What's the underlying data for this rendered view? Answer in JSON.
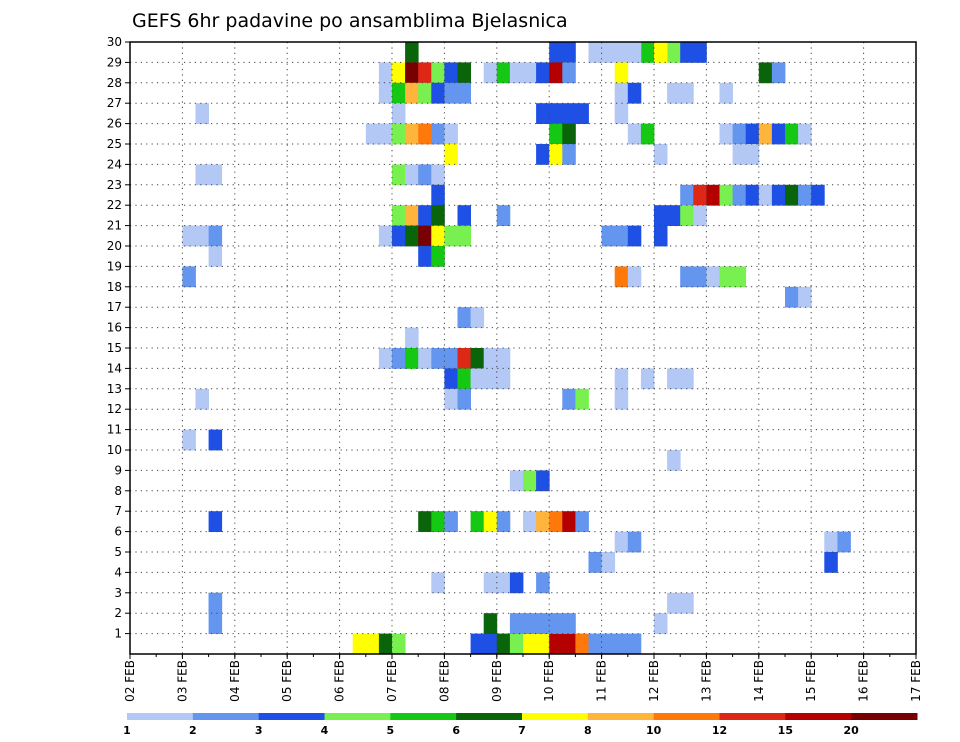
{
  "chart_data": {
    "type": "heatmap",
    "title": "GEFS 6hr padavine po ansamblima Bjelasnica",
    "x_tick_labels": [
      "02 FEB",
      "03 FEB",
      "04 FEB",
      "05 FEB",
      "06 FEB",
      "07 FEB",
      "08 FEB",
      "09 FEB",
      "10 FEB",
      "11 FEB",
      "12 FEB",
      "13 FEB",
      "14 FEB",
      "15 FEB",
      "16 FEB",
      "17 FEB"
    ],
    "x_unit": "6-hour steps from 02 FEB 00Z",
    "xlim": [
      0,
      60
    ],
    "ylim": [
      0,
      30
    ],
    "y_tick_labels": [
      "1",
      "2",
      "3",
      "4",
      "5",
      "6",
      "7",
      "8",
      "9",
      "10",
      "11",
      "12",
      "13",
      "14",
      "15",
      "16",
      "17",
      "18",
      "19",
      "20",
      "21",
      "22",
      "23",
      "24",
      "25",
      "26",
      "27",
      "28",
      "29",
      "30"
    ],
    "legend": {
      "labels": [
        "1",
        "2",
        "3",
        "4",
        "5",
        "6",
        "7",
        "8",
        "10",
        "12",
        "15",
        "20"
      ],
      "colors": [
        "#b4c8f5",
        "#6496f0",
        "#1e50e6",
        "#78f050",
        "#14c814",
        "#0a640a",
        "#ffff00",
        "#ffb43c",
        "#ff780a",
        "#dc2814",
        "#b40000",
        "#780000"
      ]
    },
    "grid": true,
    "cells": [
      [
        17,
        0,
        6
      ],
      [
        18,
        0,
        6
      ],
      [
        19,
        0,
        5
      ],
      [
        20,
        0,
        3
      ],
      [
        26,
        0,
        2
      ],
      [
        27,
        0,
        2
      ],
      [
        28,
        0,
        5
      ],
      [
        29,
        0,
        3
      ],
      [
        30,
        0,
        6
      ],
      [
        31,
        0,
        6
      ],
      [
        32,
        0,
        10
      ],
      [
        33,
        0,
        10
      ],
      [
        34,
        0,
        8
      ],
      [
        35,
        0,
        1
      ],
      [
        36,
        0,
        1
      ],
      [
        37,
        0,
        1
      ],
      [
        38,
        0,
        1
      ],
      [
        33,
        1,
        1
      ],
      [
        32,
        1,
        1
      ],
      [
        31,
        1,
        1
      ],
      [
        30,
        1,
        1
      ],
      [
        29,
        1,
        1
      ],
      [
        6,
        1,
        1
      ],
      [
        6,
        2,
        1
      ],
      [
        6,
        2,
        1
      ],
      [
        33,
        29,
        2
      ],
      [
        39,
        29,
        4
      ],
      [
        41,
        29,
        3
      ],
      [
        40,
        29,
        6
      ],
      [
        21,
        29,
        5
      ],
      [
        32,
        29,
        2
      ],
      [
        35,
        29,
        0
      ],
      [
        36,
        29,
        0
      ],
      [
        37,
        29,
        0
      ],
      [
        38,
        29,
        0
      ],
      [
        42,
        29,
        2
      ],
      [
        43,
        29,
        2
      ],
      [
        19,
        28,
        0
      ],
      [
        20,
        28,
        6
      ],
      [
        21,
        28,
        11
      ],
      [
        22,
        28,
        9
      ],
      [
        23,
        28,
        3
      ],
      [
        24,
        28,
        2
      ],
      [
        25,
        28,
        5
      ],
      [
        27,
        28,
        0
      ],
      [
        28,
        28,
        4
      ],
      [
        29,
        28,
        0
      ],
      [
        30,
        28,
        0
      ],
      [
        31,
        28,
        2
      ],
      [
        32,
        28,
        10
      ],
      [
        33,
        28,
        1
      ],
      [
        37,
        28,
        6
      ],
      [
        48,
        28,
        5
      ],
      [
        49,
        28,
        1
      ],
      [
        19,
        27,
        0
      ],
      [
        20,
        27,
        4
      ],
      [
        21,
        27,
        7
      ],
      [
        22,
        27,
        3
      ],
      [
        23,
        27,
        2
      ],
      [
        24,
        27,
        1
      ],
      [
        25,
        27,
        1
      ],
      [
        37,
        27,
        0
      ],
      [
        38,
        27,
        2
      ],
      [
        41,
        27,
        0
      ],
      [
        42,
        27,
        0
      ],
      [
        45,
        27,
        0
      ],
      [
        5,
        26,
        0
      ],
      [
        20,
        26,
        0
      ],
      [
        31,
        26,
        2
      ],
      [
        32,
        26,
        2
      ],
      [
        33,
        26,
        2
      ],
      [
        34,
        26,
        2
      ],
      [
        37,
        26,
        0
      ],
      [
        18,
        25,
        0
      ],
      [
        19,
        25,
        0
      ],
      [
        20,
        25,
        3
      ],
      [
        21,
        25,
        7
      ],
      [
        22,
        25,
        8
      ],
      [
        23,
        25,
        1
      ],
      [
        24,
        25,
        0
      ],
      [
        32,
        25,
        4
      ],
      [
        33,
        25,
        5
      ],
      [
        38,
        25,
        0
      ],
      [
        39,
        25,
        4
      ],
      [
        45,
        25,
        0
      ],
      [
        46,
        25,
        1
      ],
      [
        47,
        25,
        2
      ],
      [
        48,
        25,
        7
      ],
      [
        49,
        25,
        2
      ],
      [
        50,
        25,
        4
      ],
      [
        51,
        25,
        0
      ],
      [
        24,
        24,
        6
      ],
      [
        31,
        24,
        2
      ],
      [
        32,
        24,
        6
      ],
      [
        33,
        24,
        1
      ],
      [
        40,
        24,
        0
      ],
      [
        46,
        24,
        0
      ],
      [
        47,
        24,
        0
      ],
      [
        5,
        23,
        0
      ],
      [
        6,
        23,
        0
      ],
      [
        20,
        23,
        3
      ],
      [
        21,
        23,
        0
      ],
      [
        22,
        23,
        1
      ],
      [
        23,
        23,
        0
      ],
      [
        23,
        22,
        2
      ],
      [
        42,
        22,
        1
      ],
      [
        43,
        22,
        9
      ],
      [
        44,
        22,
        10
      ],
      [
        45,
        22,
        3
      ],
      [
        46,
        22,
        1
      ],
      [
        47,
        22,
        2
      ],
      [
        48,
        22,
        0
      ],
      [
        49,
        22,
        2
      ],
      [
        50,
        22,
        5
      ],
      [
        51,
        22,
        1
      ],
      [
        52,
        22,
        2
      ],
      [
        20,
        21,
        3
      ],
      [
        21,
        21,
        7
      ],
      [
        22,
        21,
        2
      ],
      [
        23,
        21,
        5
      ],
      [
        25,
        21,
        2
      ],
      [
        28,
        21,
        1
      ],
      [
        40,
        21,
        2
      ],
      [
        41,
        21,
        2
      ],
      [
        42,
        21,
        3
      ],
      [
        43,
        21,
        0
      ],
      [
        4,
        20,
        0
      ],
      [
        5,
        20,
        0
      ],
      [
        6,
        20,
        1
      ],
      [
        19,
        20,
        0
      ],
      [
        20,
        20,
        2
      ],
      [
        21,
        20,
        5
      ],
      [
        22,
        20,
        11
      ],
      [
        23,
        20,
        6
      ],
      [
        24,
        20,
        3
      ],
      [
        25,
        20,
        3
      ],
      [
        36,
        20,
        1
      ],
      [
        37,
        20,
        1
      ],
      [
        38,
        20,
        2
      ],
      [
        40,
        20,
        2
      ],
      [
        6,
        19,
        0
      ],
      [
        22,
        19,
        2
      ],
      [
        23,
        19,
        4
      ],
      [
        4,
        18,
        1
      ],
      [
        37,
        18,
        8
      ],
      [
        38,
        18,
        0
      ],
      [
        42,
        18,
        1
      ],
      [
        43,
        18,
        1
      ],
      [
        44,
        18,
        0
      ],
      [
        45,
        18,
        3
      ],
      [
        46,
        18,
        3
      ],
      [
        50,
        17,
        1
      ],
      [
        51,
        17,
        0
      ],
      [
        25,
        16,
        1
      ],
      [
        26,
        16,
        0
      ],
      [
        21,
        15,
        0
      ],
      [
        19,
        14,
        0
      ],
      [
        20,
        14,
        1
      ],
      [
        21,
        14,
        4
      ],
      [
        22,
        14,
        0
      ],
      [
        23,
        14,
        1
      ],
      [
        24,
        14,
        1
      ],
      [
        25,
        14,
        9
      ],
      [
        26,
        14,
        5
      ],
      [
        27,
        14,
        0
      ],
      [
        28,
        14,
        0
      ],
      [
        24,
        13,
        2
      ],
      [
        25,
        13,
        4
      ],
      [
        26,
        13,
        0
      ],
      [
        27,
        13,
        0
      ],
      [
        28,
        13,
        0
      ],
      [
        37,
        13,
        0
      ],
      [
        39,
        13,
        0
      ],
      [
        41,
        13,
        0
      ],
      [
        42,
        13,
        0
      ],
      [
        5,
        12,
        0
      ],
      [
        24,
        12,
        0
      ],
      [
        25,
        12,
        1
      ],
      [
        33,
        12,
        1
      ],
      [
        34,
        12,
        3
      ],
      [
        37,
        12,
        0
      ],
      [
        4,
        10,
        0
      ],
      [
        6,
        10,
        2
      ],
      [
        41,
        9,
        0
      ],
      [
        29,
        8,
        0
      ],
      [
        30,
        8,
        3
      ],
      [
        31,
        8,
        2
      ],
      [
        6,
        6,
        2
      ],
      [
        22,
        6,
        5
      ],
      [
        23,
        6,
        4
      ],
      [
        24,
        6,
        1
      ],
      [
        26,
        6,
        4
      ],
      [
        27,
        6,
        6
      ],
      [
        28,
        6,
        1
      ],
      [
        30,
        6,
        0
      ],
      [
        31,
        6,
        7
      ],
      [
        32,
        6,
        8
      ],
      [
        33,
        6,
        10
      ],
      [
        34,
        6,
        1
      ],
      [
        37,
        5,
        0
      ],
      [
        38,
        5,
        1
      ],
      [
        53,
        5,
        0
      ],
      [
        54,
        5,
        1
      ],
      [
        35,
        4,
        1
      ],
      [
        36,
        4,
        0
      ],
      [
        53,
        4,
        2
      ],
      [
        23,
        3,
        0
      ],
      [
        27,
        3,
        0
      ],
      [
        28,
        3,
        0
      ],
      [
        29,
        3,
        2
      ],
      [
        31,
        3,
        1
      ],
      [
        41,
        2,
        0
      ],
      [
        42,
        2,
        0
      ],
      [
        27,
        1,
        5
      ],
      [
        40,
        1,
        0
      ]
    ]
  }
}
